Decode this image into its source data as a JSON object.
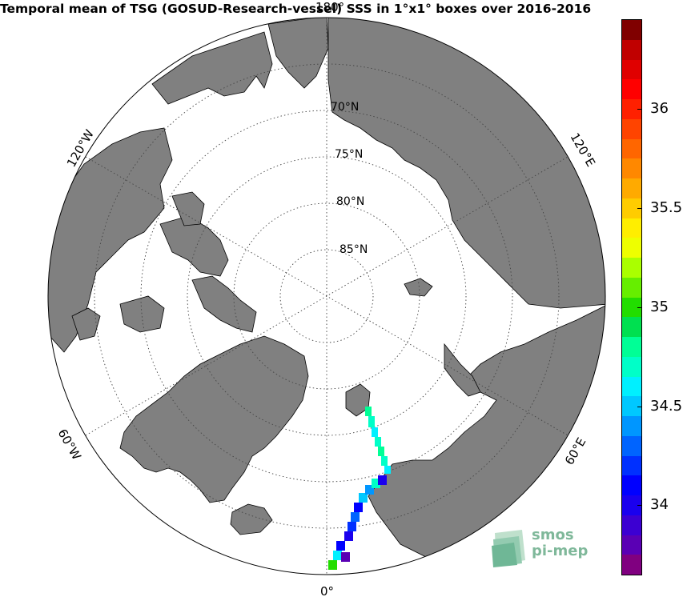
{
  "title": "Temporal mean of TSG (GOSUD-Research-vessel) SSS in 1°x1° boxes over 2016-2016",
  "map": {
    "projection": "north polar stereographic",
    "lat_labels": [
      "70°N",
      "75°N",
      "80°N",
      "85°N"
    ],
    "lon_labels": {
      "top": "180°",
      "bottom": "0°",
      "left_upper": "120°W",
      "left_lower": "60°W",
      "right_upper": "120°E",
      "right_lower": "60°E"
    },
    "colors": {
      "land": "#808080",
      "ocean": "#ffffff",
      "coast": "#000000",
      "grid": "#444444"
    }
  },
  "colorbar": {
    "ticks": [
      "34",
      "34.5",
      "35",
      "35.5",
      "36"
    ],
    "vmin": 33.65,
    "vmax": 36.45,
    "colors": [
      "#800080",
      "#5a00b4",
      "#3c00d2",
      "#1a00ee",
      "#0000ff",
      "#0030ff",
      "#0064ff",
      "#0096ff",
      "#00c8ff",
      "#00f0ff",
      "#00ffc8",
      "#00ff96",
      "#00e050",
      "#22dd00",
      "#66ee00",
      "#aaff00",
      "#eeff00",
      "#ffee00",
      "#ffcc00",
      "#ffaa00",
      "#ff8800",
      "#ff6600",
      "#ff4400",
      "#ff2000",
      "#ff0000",
      "#e00000",
      "#c00000",
      "#800000"
    ]
  },
  "logo": {
    "line1": "smos",
    "line2": "pi-mep"
  }
}
